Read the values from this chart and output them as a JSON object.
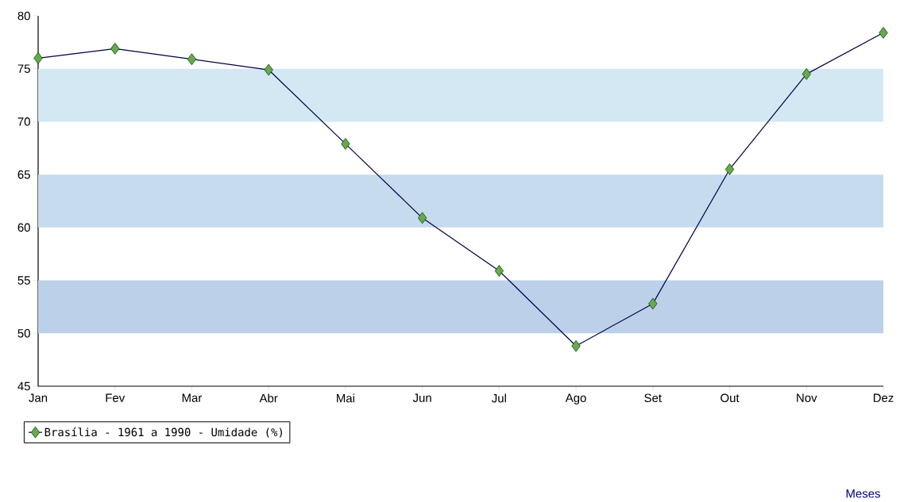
{
  "chart_data": {
    "type": "line",
    "annotations": [
      "Meses"
    ],
    "categories": [
      "Jan",
      "Fev",
      "Mar",
      "Abr",
      "Mai",
      "Jun",
      "Jul",
      "Ago",
      "Set",
      "Out",
      "Nov",
      "Dez"
    ],
    "series": [
      {
        "name": "Brasília - 1961 a 1990 - Umidade (%)",
        "color": "#6aa84f",
        "values": [
          76,
          76.9,
          75.9,
          74.9,
          67.9,
          60.9,
          55.9,
          48.8,
          52.8,
          65.5,
          74.5,
          78.4
        ]
      }
    ],
    "ylim": [
      45,
      80
    ],
    "yticks": [
      45,
      50,
      55,
      60,
      65,
      70,
      75,
      80
    ],
    "bands": [
      {
        "axis": "y",
        "from": 70,
        "to": 75,
        "color": "#d3e8f3"
      },
      {
        "axis": "y",
        "from": 60,
        "to": 65,
        "color": "#c6dbee"
      },
      {
        "axis": "y",
        "from": 50,
        "to": 55,
        "color": "#bcd1e9"
      }
    ],
    "grid": false,
    "legend": "bottom left",
    "marker": "diamond",
    "line_style": "solid"
  }
}
